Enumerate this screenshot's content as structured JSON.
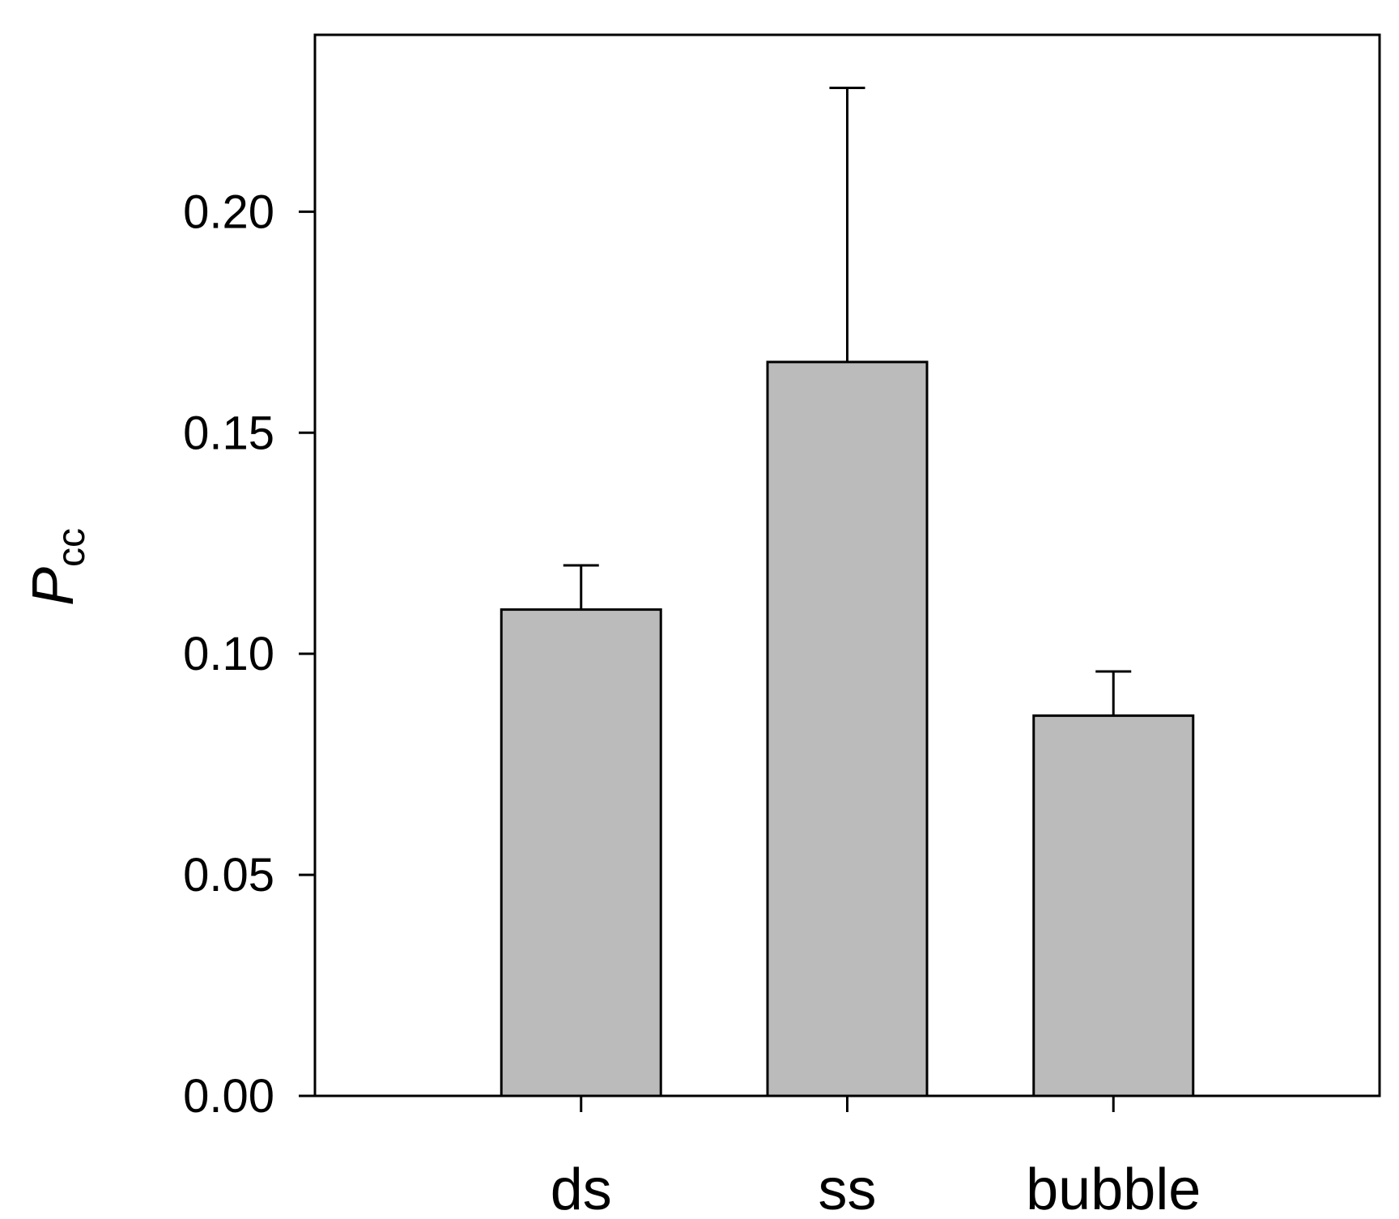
{
  "chart_data": {
    "type": "bar",
    "categories": [
      "ds",
      "ss",
      "bubble"
    ],
    "values": [
      0.11,
      0.166,
      0.086
    ],
    "error_upper": [
      0.12,
      0.228,
      0.096
    ],
    "ylabel": {
      "main": "P",
      "sub": "cc"
    },
    "xlabel": "",
    "ylim": [
      0.0,
      0.24
    ],
    "yticks": [
      0.0,
      0.05,
      0.1,
      0.15,
      0.2
    ],
    "ytick_labels": [
      "0.00",
      "0.05",
      "0.10",
      "0.15",
      "0.20"
    ],
    "grid": false,
    "legend": "none",
    "colors": {
      "bar_fill": "#bbbbbb",
      "bar_stroke": "#000000",
      "axis": "#000000"
    }
  }
}
